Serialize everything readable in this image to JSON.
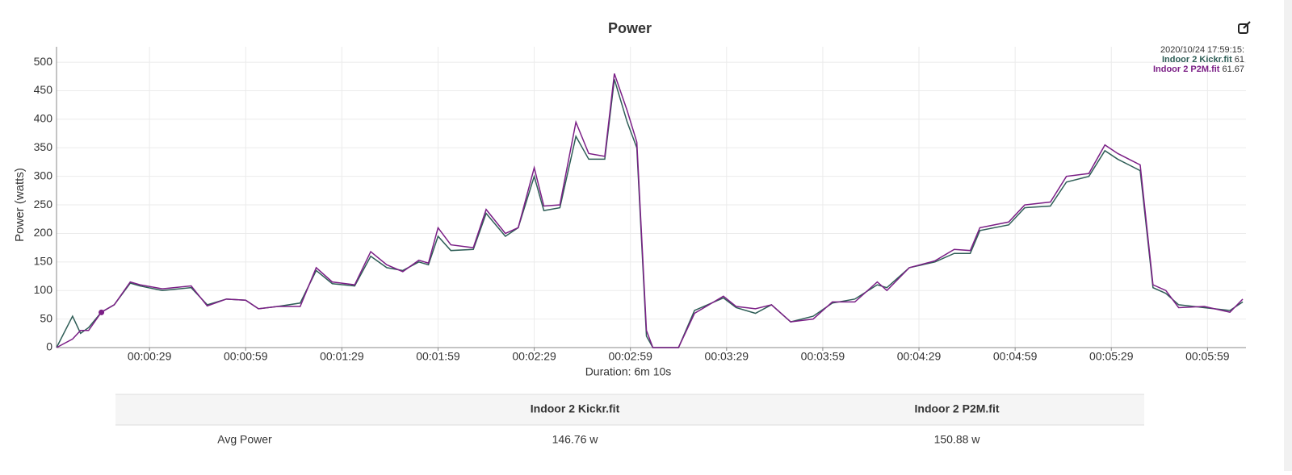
{
  "chart_data": {
    "type": "line",
    "title": "Power",
    "ylabel": "Power (watts)",
    "xlabel": "Duration: 6m 10s",
    "x": [
      0,
      5,
      7.5,
      10,
      14,
      18,
      23,
      26,
      33,
      42,
      47,
      53,
      59,
      63,
      69,
      76,
      81,
      86,
      93,
      98,
      103,
      108,
      113,
      116,
      119,
      123,
      130,
      134,
      140,
      144,
      149,
      152,
      157,
      162,
      166,
      171,
      174,
      178,
      181,
      184,
      186,
      194,
      199,
      208,
      212,
      218,
      223,
      229,
      236,
      242,
      249,
      256,
      259,
      266,
      274,
      280,
      285,
      288,
      297,
      302,
      310,
      315,
      322,
      327,
      331,
      338,
      342,
      346,
      350,
      358,
      366,
      370
    ],
    "series": [
      {
        "name": "Indoor 2 Kickr.fit",
        "color": "#2f5e57",
        "values": [
          0,
          55,
          25,
          35,
          62,
          75,
          113,
          108,
          100,
          105,
          75,
          85,
          83,
          68,
          72,
          78,
          135,
          112,
          108,
          160,
          140,
          135,
          150,
          145,
          195,
          170,
          172,
          235,
          195,
          210,
          300,
          240,
          245,
          370,
          330,
          330,
          470,
          395,
          350,
          20,
          0,
          0,
          65,
          87,
          70,
          60,
          75,
          45,
          55,
          78,
          85,
          110,
          105,
          140,
          150,
          165,
          165,
          205,
          215,
          245,
          248,
          290,
          300,
          345,
          330,
          310,
          105,
          95,
          75,
          70,
          65,
          80
        ]
      },
      {
        "name": "Indoor 2 P2M.fit",
        "color": "#7b1f86",
        "values": [
          0,
          15,
          30,
          30,
          62,
          75,
          115,
          110,
          103,
          108,
          73,
          85,
          83,
          68,
          72,
          72,
          140,
          115,
          110,
          168,
          145,
          133,
          153,
          148,
          210,
          180,
          175,
          242,
          200,
          210,
          315,
          248,
          250,
          395,
          340,
          335,
          480,
          415,
          360,
          30,
          0,
          0,
          60,
          90,
          72,
          68,
          75,
          45,
          50,
          80,
          80,
          115,
          100,
          140,
          152,
          172,
          170,
          210,
          220,
          250,
          255,
          300,
          305,
          355,
          340,
          320,
          110,
          100,
          70,
          72,
          62,
          85
        ]
      }
    ],
    "xlim": [
      0,
      371
    ],
    "ylim": [
      0,
      527
    ],
    "xticks": [
      {
        "value": 29,
        "label": "00:00:29"
      },
      {
        "value": 59,
        "label": "00:00:59"
      },
      {
        "value": 89,
        "label": "00:01:29"
      },
      {
        "value": 119,
        "label": "00:01:59"
      },
      {
        "value": 149,
        "label": "00:02:29"
      },
      {
        "value": 179,
        "label": "00:02:59"
      },
      {
        "value": 209,
        "label": "00:03:29"
      },
      {
        "value": 239,
        "label": "00:03:59"
      },
      {
        "value": 269,
        "label": "00:04:29"
      },
      {
        "value": 299,
        "label": "00:04:59"
      },
      {
        "value": 329,
        "label": "00:05:29"
      },
      {
        "value": 359,
        "label": "00:05:59"
      }
    ],
    "yticks": [
      0,
      50,
      100,
      150,
      200,
      250,
      300,
      350,
      400,
      450,
      500
    ],
    "grid": true,
    "tooltip": {
      "time": "2020/10/24 17:59:15:",
      "x": 14,
      "values": [
        61,
        61.67
      ]
    }
  },
  "table": {
    "columns": [
      "Indoor 2 Kickr.fit",
      "Indoor 2 P2M.fit"
    ],
    "rows": [
      [
        "Avg Power",
        "146.76 w",
        "150.88 w"
      ]
    ]
  }
}
